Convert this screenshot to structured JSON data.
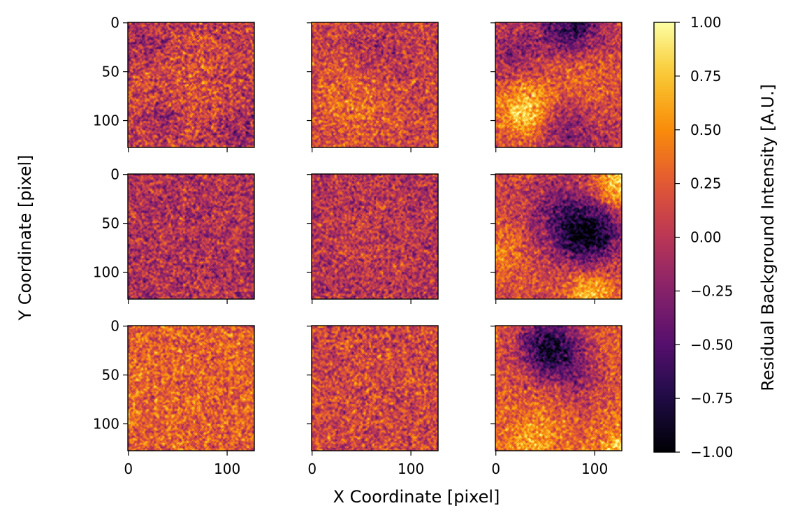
{
  "chart_data": {
    "type": "heatmap",
    "layout": "3x3 grid of image panels",
    "xlabel": "X Coordinate [pixel]",
    "ylabel": "Y Coordinate [pixel]",
    "image_size": [
      128,
      128
    ],
    "x_ticks": [
      0,
      100
    ],
    "y_ticks": [
      0,
      50,
      100
    ],
    "colorbar": {
      "label": "Residual Background Intensity [A.U.]",
      "colormap": "inferno",
      "vmin": -1.0,
      "vmax": 1.0,
      "ticks": [
        "1.00",
        "0.75",
        "0.50",
        "0.25",
        "0.00",
        "−0.25",
        "−0.50",
        "−0.75",
        "−1.00"
      ],
      "tick_values": [
        1.0,
        0.75,
        0.5,
        0.25,
        0.0,
        -0.25,
        -0.5,
        -0.75,
        -1.0
      ]
    },
    "panels": [
      {
        "row": 0,
        "col": 0,
        "base": 0.05,
        "noise": 0.5,
        "features": [
          {
            "x": 60,
            "y": 60,
            "sigma": 30,
            "amp": 0.15
          },
          {
            "x": 20,
            "y": 20,
            "sigma": 15,
            "amp": -0.25
          },
          {
            "x": 35,
            "y": 100,
            "sigma": 12,
            "amp": -0.3
          },
          {
            "x": 115,
            "y": 110,
            "sigma": 15,
            "amp": -0.25
          }
        ]
      },
      {
        "row": 0,
        "col": 1,
        "base": 0.1,
        "noise": 0.45,
        "features": [
          {
            "x": 45,
            "y": 80,
            "sigma": 30,
            "amp": 0.25
          },
          {
            "x": 70,
            "y": 35,
            "sigma": 25,
            "amp": -0.2
          }
        ]
      },
      {
        "row": 0,
        "col": 2,
        "base": 0.05,
        "noise": 0.4,
        "features": [
          {
            "x": 30,
            "y": 90,
            "sigma": 20,
            "amp": 0.8
          },
          {
            "x": 85,
            "y": 60,
            "sigma": 28,
            "amp": 0.3
          },
          {
            "x": 75,
            "y": 5,
            "sigma": 20,
            "amp": -0.8
          },
          {
            "x": 70,
            "y": 105,
            "sigma": 22,
            "amp": -0.45
          },
          {
            "x": 20,
            "y": 30,
            "sigma": 18,
            "amp": -0.3
          }
        ]
      },
      {
        "row": 1,
        "col": 0,
        "base": -0.05,
        "noise": 0.45,
        "features": []
      },
      {
        "row": 1,
        "col": 1,
        "base": -0.05,
        "noise": 0.45,
        "features": [
          {
            "x": 60,
            "y": 60,
            "sigma": 35,
            "amp": 0.1
          }
        ]
      },
      {
        "row": 1,
        "col": 2,
        "base": 0.15,
        "noise": 0.4,
        "features": [
          {
            "x": 92,
            "y": 60,
            "sigma": 24,
            "amp": -1.1
          },
          {
            "x": 60,
            "y": 35,
            "sigma": 25,
            "amp": -0.35
          },
          {
            "x": 125,
            "y": 10,
            "sigma": 18,
            "amp": 0.7
          },
          {
            "x": 95,
            "y": 120,
            "sigma": 18,
            "amp": 0.55
          },
          {
            "x": 5,
            "y": 80,
            "sigma": 20,
            "amp": 0.25
          }
        ]
      },
      {
        "row": 2,
        "col": 0,
        "base": 0.28,
        "noise": 0.45,
        "features": []
      },
      {
        "row": 2,
        "col": 1,
        "base": 0.12,
        "noise": 0.45,
        "features": []
      },
      {
        "row": 2,
        "col": 2,
        "base": 0.25,
        "noise": 0.4,
        "features": [
          {
            "x": 55,
            "y": 22,
            "sigma": 22,
            "amp": -1.1
          },
          {
            "x": 85,
            "y": 55,
            "sigma": 18,
            "amp": -0.35
          },
          {
            "x": 40,
            "y": 120,
            "sigma": 20,
            "amp": 0.35
          },
          {
            "x": 125,
            "y": 125,
            "sigma": 15,
            "amp": 0.5
          }
        ]
      }
    ]
  }
}
